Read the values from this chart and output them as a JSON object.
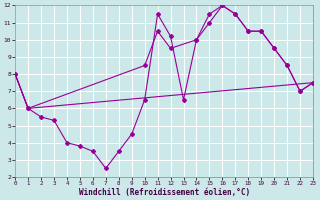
{
  "xlabel": "Windchill (Refroidissement éolien,°C)",
  "bg_color": "#cce8e8",
  "grid_color": "#ffffff",
  "line_color": "#990099",
  "xlim": [
    0,
    23
  ],
  "ylim": [
    2,
    12
  ],
  "xticks": [
    0,
    1,
    2,
    3,
    4,
    5,
    6,
    7,
    8,
    9,
    10,
    11,
    12,
    13,
    14,
    15,
    16,
    17,
    18,
    19,
    20,
    21,
    22,
    23
  ],
  "yticks": [
    2,
    3,
    4,
    5,
    6,
    7,
    8,
    9,
    10,
    11,
    12
  ],
  "line1_x": [
    0,
    1,
    2,
    3,
    4,
    5,
    6,
    7,
    8,
    9,
    10,
    11,
    12,
    13,
    14,
    15,
    16,
    17,
    18,
    19,
    20,
    21,
    22,
    23
  ],
  "line1_y": [
    8.0,
    6.0,
    5.5,
    5.3,
    4.0,
    3.8,
    3.5,
    2.5,
    3.5,
    4.5,
    6.5,
    11.5,
    10.2,
    6.5,
    10.0,
    11.5,
    12.0,
    11.5,
    10.5,
    10.5,
    9.5,
    8.5,
    7.0,
    7.5
  ],
  "line2_x": [
    0,
    1,
    23
  ],
  "line2_y": [
    8.0,
    6.0,
    7.5
  ],
  "line3_x": [
    0,
    1,
    10,
    11,
    12,
    14,
    15,
    16,
    17,
    18,
    19,
    20,
    21,
    22,
    23
  ],
  "line3_y": [
    8.0,
    6.0,
    8.5,
    10.5,
    9.5,
    10.0,
    11.0,
    12.0,
    11.5,
    10.5,
    10.5,
    9.5,
    8.5,
    7.0,
    7.5
  ]
}
